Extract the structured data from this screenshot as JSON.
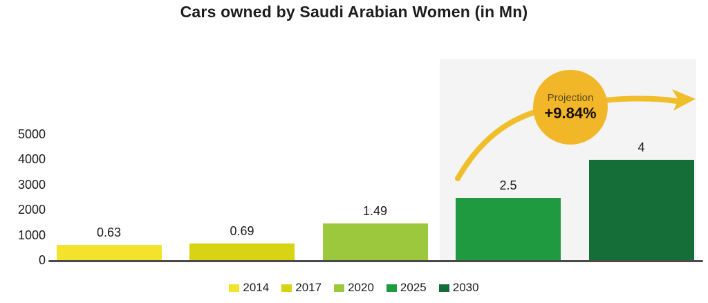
{
  "title": "Cars owned by Saudi Arabian Women (in Mn)",
  "projection_badge": {
    "label": "Projection",
    "value": "+9.84%"
  },
  "chart_data": {
    "type": "bar",
    "title": "Cars owned by Saudi Arabian Women (in Mn)",
    "categories": [
      "2014",
      "2017",
      "2020",
      "2025",
      "2030"
    ],
    "values": [
      0.63,
      0.69,
      1.49,
      2.5,
      4
    ],
    "value_labels": [
      "0.63",
      "0.69",
      "1.49",
      "2.5",
      "4"
    ],
    "axis_scale_values": [
      630,
      690,
      1490,
      2500,
      4000
    ],
    "bar_colors": [
      "#f3e32c",
      "#d8d414",
      "#9cc83e",
      "#1f9a41",
      "#156e38"
    ],
    "y_ticks": [
      0,
      1000,
      2000,
      3000,
      4000,
      5000
    ],
    "ylim": [
      0,
      5000
    ],
    "xlabel": "",
    "ylabel": "",
    "grid": false,
    "legend_position": "bottom",
    "projection_categories": [
      "2025",
      "2030"
    ],
    "annotation": "Projection +9.84%"
  },
  "colors": {
    "projection_panel": "#f4f4f5",
    "badge": "#f2b629",
    "arrow": "#f0be2b",
    "axis_line": "#4a4a4a",
    "text": "#1c1c1c"
  }
}
